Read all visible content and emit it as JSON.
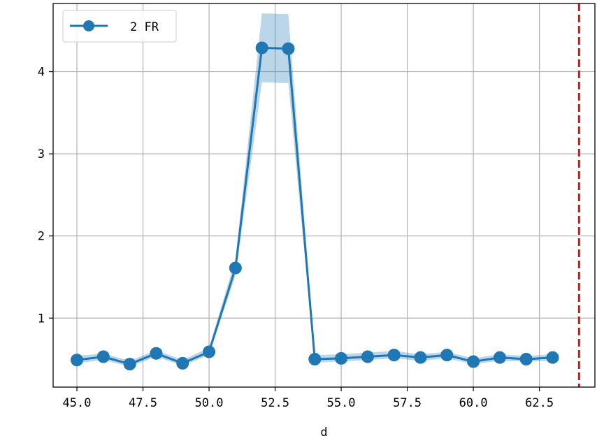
{
  "chart_data": {
    "type": "line",
    "xlabel": "d",
    "ylabel": "",
    "xlim": [
      44.1,
      64.6
    ],
    "ylim": [
      0.16,
      4.83
    ],
    "x_ticks": [
      45.0,
      47.5,
      50.0,
      52.5,
      55.0,
      57.5,
      60.0,
      62.5
    ],
    "x_tick_labels": [
      "45.0",
      "47.5",
      "50.0",
      "52.5",
      "55.0",
      "57.5",
      "60.0",
      "62.5"
    ],
    "y_ticks": [
      1,
      2,
      3,
      4
    ],
    "y_tick_labels": [
      "1",
      "2",
      "3",
      "4"
    ],
    "grid": true,
    "legend_position": "top-left",
    "series": [
      {
        "name": "2 FR",
        "color": "#1f77b4",
        "band_color": "#1f77b4",
        "x": [
          45,
          46,
          47,
          48,
          49,
          50,
          51,
          52,
          53,
          54,
          55,
          56,
          57,
          58,
          59,
          60,
          61,
          62,
          63
        ],
        "y": [
          0.49,
          0.53,
          0.44,
          0.57,
          0.45,
          0.59,
          1.61,
          4.29,
          4.28,
          0.5,
          0.51,
          0.53,
          0.55,
          0.52,
          0.55,
          0.47,
          0.52,
          0.5,
          0.52
        ],
        "y_lower": [
          0.45,
          0.49,
          0.41,
          0.53,
          0.42,
          0.55,
          1.52,
          3.87,
          3.86,
          0.46,
          0.47,
          0.49,
          0.51,
          0.48,
          0.51,
          0.44,
          0.48,
          0.47,
          0.48
        ],
        "y_upper": [
          0.54,
          0.57,
          0.48,
          0.61,
          0.49,
          0.64,
          1.72,
          4.71,
          4.7,
          0.55,
          0.56,
          0.58,
          0.6,
          0.56,
          0.59,
          0.51,
          0.56,
          0.54,
          0.56
        ]
      }
    ],
    "vline": {
      "x": 64,
      "color": "#ff0000",
      "style": "dashed"
    }
  }
}
